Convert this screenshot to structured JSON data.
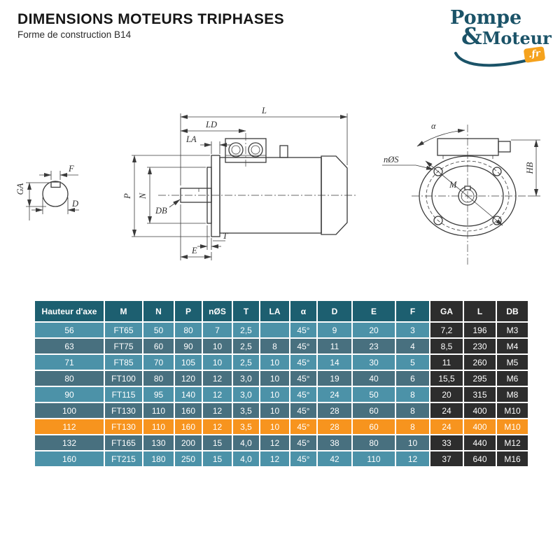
{
  "page": {
    "title": "DIMENSIONS MOTEURS TRIPHASES",
    "subtitle": "Forme de construction B14"
  },
  "logo": {
    "pompe": "Pompe",
    "amp": "&",
    "moteur": "Moteur",
    "tld": ".fr"
  },
  "theme": {
    "header_bg": "#1d5f70",
    "row_light": "#4c92a8",
    "row_slate": "#48707f",
    "highlight": "#f7941e",
    "col_dark": "#2d2d2d",
    "teal": "#1b5368",
    "orange": "#f5a21d"
  },
  "drawing": {
    "labels": {
      "l": "L",
      "ld": "LD",
      "la": "LA",
      "p": "P",
      "n": "N",
      "db": "DB",
      "t": "T",
      "e": "E",
      "f": "F",
      "ga": "GA",
      "d": "D",
      "alpha": "α",
      "nos": "nØS",
      "m": "M",
      "hb": "HB"
    }
  },
  "table": {
    "columns": [
      "Hauteur d'axe",
      "M",
      "N",
      "P",
      "nØS",
      "T",
      "LA",
      "α",
      "D",
      "E",
      "F",
      "GA",
      "L",
      "DB"
    ],
    "dark_from": 11,
    "highlight_row_index": 6,
    "rows": [
      [
        "56",
        "FT65",
        "50",
        "80",
        "7",
        "2,5",
        "",
        "45°",
        "9",
        "20",
        "3",
        "7,2",
        "196",
        "M3"
      ],
      [
        "63",
        "FT75",
        "60",
        "90",
        "10",
        "2,5",
        "8",
        "45°",
        "11",
        "23",
        "4",
        "8,5",
        "230",
        "M4"
      ],
      [
        "71",
        "FT85",
        "70",
        "105",
        "10",
        "2,5",
        "10",
        "45°",
        "14",
        "30",
        "5",
        "11",
        "260",
        "M5"
      ],
      [
        "80",
        "FT100",
        "80",
        "120",
        "12",
        "3,0",
        "10",
        "45°",
        "19",
        "40",
        "6",
        "15,5",
        "295",
        "M6"
      ],
      [
        "90",
        "FT115",
        "95",
        "140",
        "12",
        "3,0",
        "10",
        "45°",
        "24",
        "50",
        "8",
        "20",
        "315",
        "M8"
      ],
      [
        "100",
        "FT130",
        "110",
        "160",
        "12",
        "3,5",
        "10",
        "45°",
        "28",
        "60",
        "8",
        "24",
        "400",
        "M10"
      ],
      [
        "112",
        "FT130",
        "110",
        "160",
        "12",
        "3,5",
        "10",
        "45°",
        "28",
        "60",
        "8",
        "24",
        "400",
        "M10"
      ],
      [
        "132",
        "FT165",
        "130",
        "200",
        "15",
        "4,0",
        "12",
        "45°",
        "38",
        "80",
        "10",
        "33",
        "440",
        "M12"
      ],
      [
        "160",
        "FT215",
        "180",
        "250",
        "15",
        "4,0",
        "12",
        "45°",
        "42",
        "110",
        "12",
        "37",
        "640",
        "M16"
      ]
    ]
  }
}
